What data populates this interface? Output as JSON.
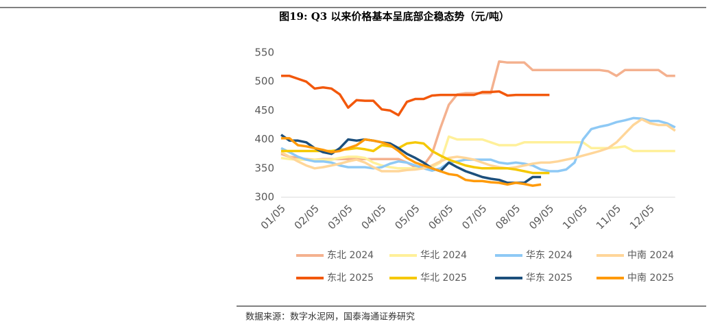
{
  "chart_data": {
    "type": "line",
    "title": "图19:  Q3 以来价格基本呈底部企稳态势（元/吨）",
    "source": "数据来源：数字水泥网，国泰海通证券研究",
    "categories": [
      "01/05",
      null,
      null,
      null,
      "02/05",
      null,
      null,
      null,
      "03/05",
      null,
      null,
      null,
      "04/05",
      null,
      null,
      null,
      "05/05",
      null,
      null,
      null,
      "06/05",
      null,
      null,
      null,
      "07/05",
      null,
      null,
      null,
      "08/05",
      null,
      null,
      null,
      "09/05",
      null,
      null,
      null,
      "10/05",
      null,
      null,
      null,
      "11/05",
      null,
      null,
      null,
      "12/05",
      null,
      null,
      null
    ],
    "ylim": [
      300,
      550
    ],
    "yticks": [
      300,
      350,
      400,
      450,
      500,
      550
    ],
    "series": [
      {
        "name": "东北 2024",
        "color": "#f4b18f",
        "values": [
          375,
          370,
          368,
          366,
          365,
          366,
          366,
          366,
          366,
          366,
          366,
          366,
          366,
          366,
          366,
          360,
          352,
          355,
          375,
          420,
          460,
          478,
          480,
          480,
          480,
          480,
          535,
          533,
          533,
          533,
          520,
          520,
          520,
          520,
          520,
          520,
          520,
          520,
          520,
          518,
          510,
          520,
          520,
          520,
          520,
          520,
          510,
          510
        ]
      },
      {
        "name": "华北 2024",
        "color": "#fff09a",
        "values": [
          368,
          366,
          365,
          365,
          365,
          365,
          365,
          368,
          370,
          370,
          368,
          360,
          355,
          352,
          350,
          350,
          350,
          350,
          352,
          360,
          405,
          400,
          400,
          400,
          400,
          395,
          390,
          390,
          390,
          395,
          395,
          395,
          395,
          395,
          395,
          395,
          395,
          385,
          385,
          385,
          386,
          388,
          380,
          380,
          380,
          380,
          380,
          380
        ]
      },
      {
        "name": "华东 2024",
        "color": "#8ec9f5",
        "values": [
          385,
          378,
          370,
          365,
          362,
          362,
          360,
          355,
          352,
          352,
          352,
          350,
          352,
          358,
          362,
          360,
          355,
          350,
          346,
          350,
          360,
          362,
          365,
          365,
          365,
          365,
          360,
          358,
          360,
          358,
          355,
          348,
          345,
          345,
          348,
          360,
          400,
          418,
          422,
          425,
          430,
          433,
          437,
          436,
          432,
          432,
          428,
          421
        ]
      },
      {
        "name": "中南 2024",
        "color": "#ffd699",
        "values": [
          378,
          370,
          362,
          355,
          350,
          352,
          355,
          358,
          362,
          365,
          360,
          352,
          345,
          345,
          345,
          347,
          348,
          350,
          355,
          362,
          368,
          370,
          368,
          365,
          360,
          355,
          352,
          350,
          352,
          355,
          358,
          360,
          360,
          362,
          365,
          368,
          372,
          376,
          380,
          385,
          395,
          410,
          425,
          435,
          428,
          425,
          425,
          415
        ]
      },
      {
        "name": "东北 2025",
        "color": "#f2580c",
        "values": [
          510,
          510,
          505,
          500,
          488,
          490,
          488,
          478,
          455,
          468,
          467,
          467,
          452,
          450,
          442,
          465,
          470,
          470,
          476,
          477,
          477,
          477,
          477,
          477,
          482,
          482,
          483,
          476,
          477,
          477,
          477,
          477,
          477,
          null,
          null,
          null,
          null,
          null,
          null,
          null,
          null,
          null,
          null,
          null,
          null,
          null,
          null,
          null
        ]
      },
      {
        "name": "华北 2025",
        "color": "#f5c800",
        "values": [
          380,
          380,
          380,
          380,
          380,
          380,
          380,
          382,
          383,
          385,
          383,
          380,
          390,
          388,
          385,
          393,
          395,
          393,
          380,
          372,
          365,
          360,
          355,
          352,
          350,
          350,
          350,
          350,
          348,
          345,
          342,
          342,
          342,
          null,
          null,
          null,
          null,
          null,
          null,
          null,
          null,
          null,
          null,
          null,
          null,
          null,
          null,
          null
        ]
      },
      {
        "name": "华东 2025",
        "color": "#1c4f7c",
        "values": [
          408,
          398,
          398,
          395,
          385,
          378,
          375,
          385,
          400,
          398,
          400,
          398,
          395,
          393,
          385,
          375,
          368,
          360,
          350,
          345,
          360,
          352,
          345,
          340,
          335,
          332,
          330,
          325,
          325,
          325,
          335,
          335,
          null,
          null,
          null,
          null,
          null,
          null,
          null,
          null,
          null,
          null,
          null,
          null,
          null,
          null,
          null,
          null
        ]
      },
      {
        "name": "中南 2025",
        "color": "#ff9a0a",
        "values": [
          402,
          402,
          390,
          388,
          385,
          382,
          378,
          380,
          385,
          390,
          400,
          398,
          395,
          390,
          380,
          368,
          360,
          355,
          350,
          345,
          340,
          338,
          330,
          328,
          328,
          326,
          325,
          322,
          325,
          323,
          320,
          322,
          null,
          null,
          null,
          null,
          null,
          null,
          null,
          null,
          null,
          null,
          null,
          null,
          null,
          null,
          null,
          null
        ]
      }
    ]
  }
}
